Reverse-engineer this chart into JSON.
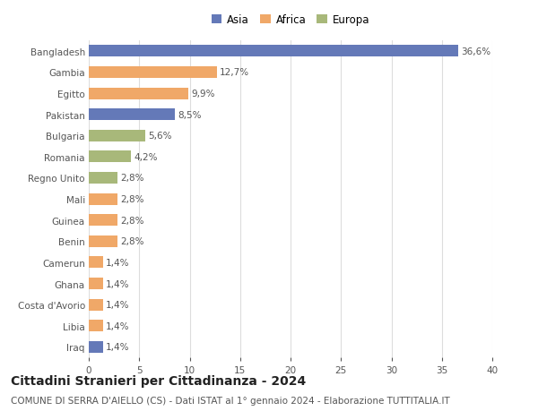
{
  "categories": [
    "Bangladesh",
    "Gambia",
    "Egitto",
    "Pakistan",
    "Bulgaria",
    "Romania",
    "Regno Unito",
    "Mali",
    "Guinea",
    "Benin",
    "Camerun",
    "Ghana",
    "Costa d'Avorio",
    "Libia",
    "Iraq"
  ],
  "values": [
    36.6,
    12.7,
    9.9,
    8.5,
    5.6,
    4.2,
    2.8,
    2.8,
    2.8,
    2.8,
    1.4,
    1.4,
    1.4,
    1.4,
    1.4
  ],
  "labels": [
    "36,6%",
    "12,7%",
    "9,9%",
    "8,5%",
    "5,6%",
    "4,2%",
    "2,8%",
    "2,8%",
    "2,8%",
    "2,8%",
    "1,4%",
    "1,4%",
    "1,4%",
    "1,4%",
    "1,4%"
  ],
  "colors": [
    "#6479b8",
    "#f0a868",
    "#f0a868",
    "#6479b8",
    "#a8b87a",
    "#a8b87a",
    "#a8b87a",
    "#f0a868",
    "#f0a868",
    "#f0a868",
    "#f0a868",
    "#f0a868",
    "#f0a868",
    "#f0a868",
    "#6479b8"
  ],
  "legend_labels": [
    "Asia",
    "Africa",
    "Europa"
  ],
  "legend_colors": [
    "#6479b8",
    "#f0a868",
    "#a8b87a"
  ],
  "title1": "Cittadini Stranieri per Cittadinanza - 2024",
  "title2": "COMUNE DI SERRA D'AIELLO (CS) - Dati ISTAT al 1° gennaio 2024 - Elaborazione TUTTITALIA.IT",
  "xlim": [
    0,
    40
  ],
  "xticks": [
    0,
    5,
    10,
    15,
    20,
    25,
    30,
    35,
    40
  ],
  "background_color": "#ffffff",
  "grid_color": "#dddddd",
  "bar_height": 0.55,
  "label_fontsize": 7.5,
  "ytick_fontsize": 7.5,
  "xtick_fontsize": 7.5,
  "legend_fontsize": 8.5,
  "title1_fontsize": 10,
  "title2_fontsize": 7.5
}
